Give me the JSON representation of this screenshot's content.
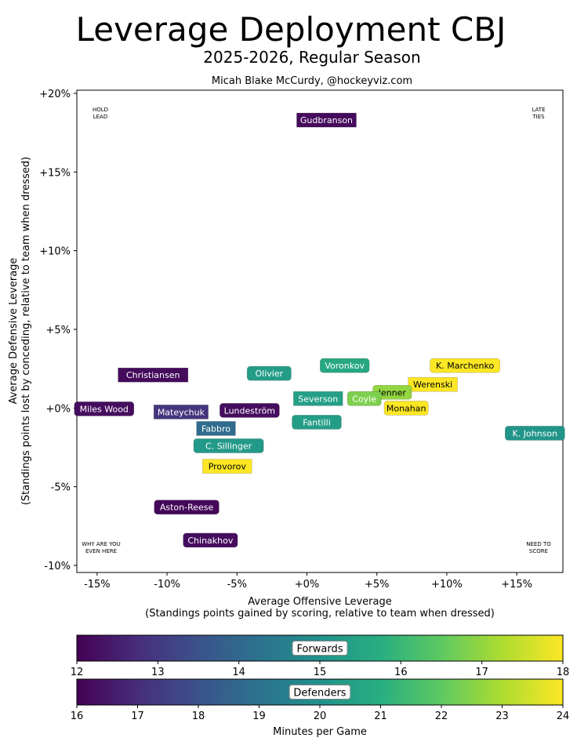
{
  "chart_data": {
    "type": "scatter",
    "title": "Leverage Deployment CBJ",
    "subtitle": "2025-2026, Regular Season",
    "credit": "Micah Blake McCurdy, @hockeyviz.com",
    "xlabel": "Average Offensive Leverage",
    "xlabel2": "(Standings points gained by scoring, relative to team when dressed)",
    "ylabel": "Average Defensive Leverage",
    "ylabel2": "(Standings points lost by conceding, relative to team when dressed)",
    "xlim": [
      -16.45,
      18.3
    ],
    "ylim": [
      -10.45,
      20.2
    ],
    "xticks": [
      -15,
      -10,
      -5,
      0,
      5,
      10,
      15
    ],
    "xtick_labels": [
      "-15%",
      "-10%",
      "-5%",
      "+0%",
      "+5%",
      "+10%",
      "+15%"
    ],
    "yticks": [
      -10,
      -5,
      0,
      5,
      10,
      15,
      20
    ],
    "ytick_labels": [
      "-10%",
      "-5%",
      "+0%",
      "+5%",
      "+10%",
      "+15%",
      "+20%"
    ],
    "corners": {
      "top_left": [
        "HOLD",
        "LEAD"
      ],
      "top_right": [
        "LATE",
        "TIES"
      ],
      "bottom_left": [
        "WHY ARE YOU",
        "EVEN HERE"
      ],
      "bottom_right": [
        "NEED TO",
        "SCORE"
      ]
    },
    "players": [
      {
        "name": "Gudbranson",
        "pos": "D",
        "x": 1.4,
        "y": 18.3,
        "toi": 16.2
      },
      {
        "name": "Christiansen",
        "pos": "D",
        "x": -11.0,
        "y": 2.1,
        "toi": 16.2
      },
      {
        "name": "Olivier",
        "pos": "F",
        "x": -2.7,
        "y": 2.2,
        "toi": 15.3
      },
      {
        "name": "Voronkov",
        "pos": "F",
        "x": 2.7,
        "y": 2.7,
        "toi": 15.6
      },
      {
        "name": "K. Marchenko",
        "pos": "F",
        "x": 11.3,
        "y": 2.7,
        "toi": 18.0
      },
      {
        "name": "Werenski",
        "pos": "D",
        "x": 9.0,
        "y": 1.5,
        "toi": 24.0
      },
      {
        "name": "Jenner",
        "pos": "F",
        "x": 6.1,
        "y": 1.0,
        "toi": 17.0
      },
      {
        "name": "Coyle",
        "pos": "F",
        "x": 4.1,
        "y": 0.6,
        "toi": 16.8
      },
      {
        "name": "Severson",
        "pos": "D",
        "x": 0.8,
        "y": 0.6,
        "toi": 20.5
      },
      {
        "name": "Monahan",
        "pos": "F",
        "x": 7.1,
        "y": 0.0,
        "toi": 18.0
      },
      {
        "name": "Miles Wood",
        "pos": "F",
        "x": -14.5,
        "y": -0.05,
        "toi": 12.2
      },
      {
        "name": "Mateychuk",
        "pos": "D",
        "x": -9.0,
        "y": -0.25,
        "toi": 17.2
      },
      {
        "name": "Lundeström",
        "pos": "F",
        "x": -4.1,
        "y": -0.15,
        "toi": 12.2
      },
      {
        "name": "Fantilli",
        "pos": "F",
        "x": 0.7,
        "y": -0.9,
        "toi": 15.3
      },
      {
        "name": "Fabbro",
        "pos": "D",
        "x": -6.5,
        "y": -1.3,
        "toi": 18.8
      },
      {
        "name": "C. Sillinger",
        "pos": "F",
        "x": -5.6,
        "y": -2.4,
        "toi": 15.2
      },
      {
        "name": "Provorov",
        "pos": "D",
        "x": -5.7,
        "y": -3.7,
        "toi": 24.0
      },
      {
        "name": "K. Johnson",
        "pos": "F",
        "x": 16.3,
        "y": -1.6,
        "toi": 15.1
      },
      {
        "name": "Aston-Reese",
        "pos": "F",
        "x": -8.6,
        "y": -6.3,
        "toi": 12.1
      },
      {
        "name": "Chinakhov",
        "pos": "F",
        "x": -6.9,
        "y": -8.4,
        "toi": 12.2
      }
    ],
    "colorbars": [
      {
        "label": "Forwards",
        "pos": "F",
        "min": 12,
        "max": 18,
        "ticks": [
          "12",
          "13",
          "14",
          "15",
          "16",
          "17",
          "18"
        ]
      },
      {
        "label": "Defenders",
        "pos": "D",
        "min": 16,
        "max": 24,
        "ticks": [
          "16",
          "17",
          "18",
          "19",
          "20",
          "21",
          "22",
          "23",
          "24"
        ]
      }
    ],
    "colorbar_label": "Minutes per Game",
    "colormap": "viridis"
  }
}
